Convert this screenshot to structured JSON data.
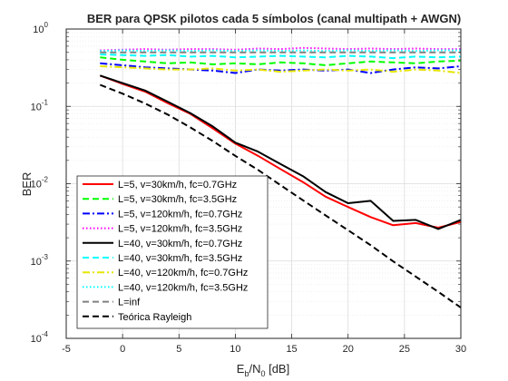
{
  "chart_data": {
    "type": "line",
    "title": "BER para QPSK pilotos cada 5 símbolos (canal multipath + AWGN)",
    "xlabel": "Eb/N0 [dB]",
    "xlabel_parts": {
      "base": "E",
      "sub1": "b",
      "mid": "/N",
      "sub2": "0",
      "tail": " [dB]"
    },
    "ylabel": "BER",
    "xlim": [
      -5,
      30
    ],
    "ylim": [
      0.0001,
      1
    ],
    "yscale": "log",
    "grid": true,
    "minor_grid": true,
    "legend_position": "lower-left",
    "x_ticks": [
      "-5",
      "0",
      "5",
      "10",
      "15",
      "20",
      "25",
      "30"
    ],
    "y_ticks": [
      {
        "base": "10",
        "exp": "-4"
      },
      {
        "base": "10",
        "exp": "-3"
      },
      {
        "base": "10",
        "exp": "-2"
      },
      {
        "base": "10",
        "exp": "-1"
      },
      {
        "base": "10",
        "exp": "0"
      }
    ],
    "x": [
      -2,
      0,
      2,
      4,
      6,
      8,
      10,
      12,
      14,
      16,
      18,
      20,
      22,
      24,
      26,
      28,
      30
    ],
    "series": [
      {
        "name": "L=5, v=30km/h, fc=0.7GHz",
        "color": "#ff0000",
        "dash": "solid",
        "values": [
          0.25,
          0.195,
          0.155,
          0.11,
          0.08,
          0.052,
          0.033,
          0.023,
          0.0155,
          0.0105,
          0.0068,
          0.005,
          0.0037,
          0.0029,
          0.0031,
          0.0027,
          0.0032
        ]
      },
      {
        "name": "L=5, v=30km/h, fc=3.5GHz",
        "color": "#00ff00",
        "dash": "dashed",
        "values": [
          0.43,
          0.4,
          0.38,
          0.36,
          0.37,
          0.35,
          0.36,
          0.35,
          0.37,
          0.36,
          0.34,
          0.36,
          0.38,
          0.37,
          0.36,
          0.38,
          0.39
        ]
      },
      {
        "name": "L=5, v=120km/h, fc=0.7GHz",
        "color": "#0000ff",
        "dash": "dashdot",
        "values": [
          0.36,
          0.34,
          0.32,
          0.31,
          0.3,
          0.29,
          0.27,
          0.3,
          0.29,
          0.3,
          0.29,
          0.3,
          0.27,
          0.3,
          0.32,
          0.31,
          0.33
        ]
      },
      {
        "name": "L=5, v=120km/h, fc=3.5GHz",
        "color": "#ff00ff",
        "dash": "dotted",
        "values": [
          0.53,
          0.54,
          0.55,
          0.54,
          0.55,
          0.55,
          0.54,
          0.56,
          0.55,
          0.57,
          0.56,
          0.55,
          0.56,
          0.55,
          0.56,
          0.55,
          0.55
        ]
      },
      {
        "name": "L=40, v=30km/h, fc=0.7GHz",
        "color": "#000000",
        "dash": "solid",
        "values": [
          0.25,
          0.2,
          0.16,
          0.115,
          0.082,
          0.055,
          0.034,
          0.026,
          0.018,
          0.0125,
          0.0078,
          0.0056,
          0.006,
          0.0033,
          0.0034,
          0.0026,
          0.0034
        ]
      },
      {
        "name": "L=40, v=30km/h, fc=3.5GHz",
        "color": "#00ffff",
        "dash": "dashed",
        "values": [
          0.47,
          0.46,
          0.45,
          0.46,
          0.44,
          0.45,
          0.43,
          0.44,
          0.45,
          0.44,
          0.43,
          0.45,
          0.44,
          0.42,
          0.44,
          0.43,
          0.44
        ]
      },
      {
        "name": "L=40, v=120km/h, fc=0.7GHz",
        "color": "#e6e600",
        "dash": "dashdot",
        "values": [
          0.33,
          0.32,
          0.31,
          0.3,
          0.3,
          0.31,
          0.29,
          0.3,
          0.28,
          0.29,
          0.3,
          0.29,
          0.3,
          0.28,
          0.3,
          0.29,
          0.27
        ]
      },
      {
        "name": "L=40, v=120km/h, fc=3.5GHz",
        "color": "#00ffff",
        "dash": "dotted",
        "values": [
          0.52,
          0.53,
          0.52,
          0.53,
          0.52,
          0.53,
          0.52,
          0.53,
          0.52,
          0.53,
          0.52,
          0.53,
          0.52,
          0.53,
          0.52,
          0.53,
          0.53
        ]
      },
      {
        "name": "L=inf",
        "color": "#808080",
        "dash": "dashed",
        "values": [
          0.5,
          0.5,
          0.5,
          0.5,
          0.5,
          0.5,
          0.5,
          0.5,
          0.5,
          0.5,
          0.5,
          0.5,
          0.5,
          0.5,
          0.5,
          0.5,
          0.5
        ]
      },
      {
        "name": "Teórica Rayleigh",
        "color": "#000000",
        "dash": "dashed",
        "values": [
          0.19,
          0.146,
          0.109,
          0.0783,
          0.0535,
          0.0356,
          0.0229,
          0.0151,
          0.0096,
          0.0061,
          0.0039,
          0.0025,
          0.0016,
          0.00099,
          0.00063,
          0.0004,
          0.00025
        ]
      }
    ]
  }
}
